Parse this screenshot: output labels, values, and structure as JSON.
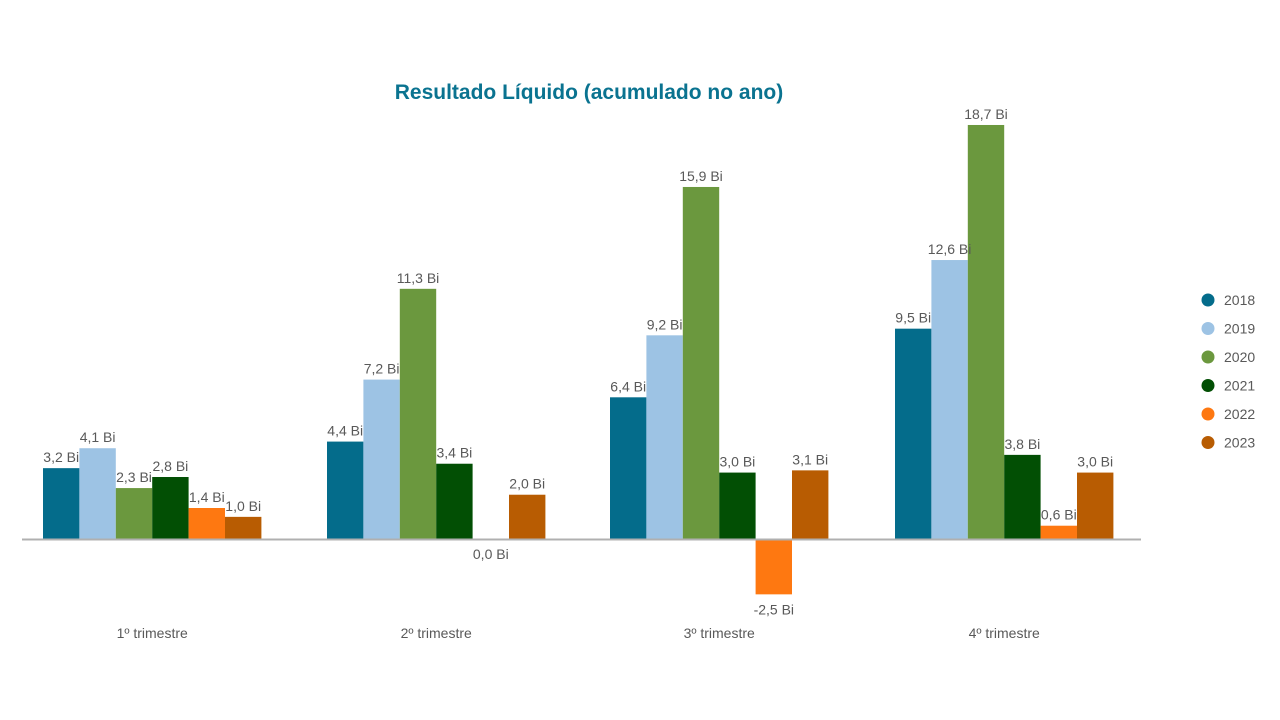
{
  "chart_data": {
    "type": "bar",
    "title": "Resultado Líquido (acumulado no ano)",
    "xlabel": "",
    "ylabel": "",
    "categories": [
      "1º trimestre",
      "2º trimestre",
      "3º trimestre",
      "4º trimestre"
    ],
    "unit_suffix": " Bi",
    "series": [
      {
        "name": "2018",
        "color": "#046c8b",
        "values": [
          3.2,
          4.4,
          6.4,
          9.5
        ],
        "labels": [
          "3,2 Bi",
          "4,4 Bi",
          "6,4 Bi",
          "9,5 Bi"
        ]
      },
      {
        "name": "2019",
        "color": "#9dc3e4",
        "values": [
          4.1,
          7.2,
          9.2,
          12.6
        ],
        "labels": [
          "4,1 Bi",
          "7,2 Bi",
          "9,2 Bi",
          "12,6 Bi"
        ]
      },
      {
        "name": "2020",
        "color": "#6b983e",
        "values": [
          2.3,
          11.3,
          15.9,
          18.7
        ],
        "labels": [
          "2,3 Bi",
          "11,3 Bi",
          "15,9 Bi",
          "18,7 Bi"
        ]
      },
      {
        "name": "2021",
        "color": "#024f04",
        "values": [
          2.8,
          3.4,
          3.0,
          3.8
        ],
        "labels": [
          "2,8 Bi",
          "3,4 Bi",
          "3,0 Bi",
          "3,8 Bi"
        ]
      },
      {
        "name": "2022",
        "color": "#fe7811",
        "values": [
          1.4,
          0.0,
          -2.5,
          0.6
        ],
        "labels": [
          "1,4 Bi",
          "0,0 Bi",
          "-2,5 Bi",
          "0,6 Bi"
        ]
      },
      {
        "name": "2023",
        "color": "#b85c02",
        "values": [
          1.0,
          2.0,
          3.1,
          3.0
        ],
        "labels": [
          "1,0 Bi",
          "2,0 Bi",
          "3,1 Bi",
          "3,0 Bi"
        ]
      }
    ],
    "ylim": [
      -2.5,
      18.7
    ],
    "grid": false,
    "legend_position": "right",
    "axis_color": "#b0b0b0"
  }
}
